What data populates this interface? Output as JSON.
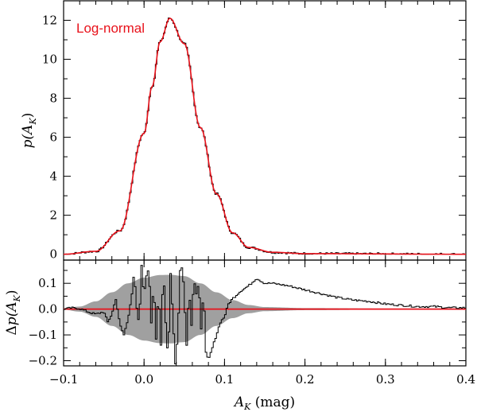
{
  "chart_data": [
    {
      "type": "histogram",
      "panel": "top",
      "ylabel": "p(A_K)",
      "ylabel_parts": {
        "main": "p(A",
        "sub": "K",
        "close": ")"
      },
      "xlim": [
        -0.1,
        0.4
      ],
      "ylim": [
        -0.3,
        13
      ],
      "yticks": [
        0,
        2,
        4,
        6,
        8,
        10,
        12
      ],
      "ytick_labels": [
        "0",
        "2",
        "4",
        "6",
        "8",
        "10",
        "12"
      ],
      "legend": {
        "label": "Log-normal",
        "color": "#e8121b",
        "location": "top-left"
      },
      "model": {
        "name": "Log-normal",
        "color": "#e8121b",
        "peak_x": 0.032,
        "peak_y": 12.1,
        "left_anchor_points": [
          [
            -0.1,
            0.0
          ],
          [
            -0.06,
            0.15
          ],
          [
            -0.03,
            1.2
          ],
          [
            0.0,
            6.2
          ],
          [
            0.01,
            8.6
          ],
          [
            0.02,
            10.9
          ],
          [
            0.032,
            12.1
          ]
        ],
        "right_anchor_points": [
          [
            0.032,
            12.1
          ],
          [
            0.05,
            10.8
          ],
          [
            0.07,
            6.5
          ],
          [
            0.09,
            3.1
          ],
          [
            0.11,
            1.1
          ],
          [
            0.13,
            0.35
          ],
          [
            0.16,
            0.1
          ],
          [
            0.2,
            0.03
          ],
          [
            0.4,
            0.0
          ]
        ]
      },
      "histogram": {
        "color": "#000000",
        "bin_width": 0.002,
        "x_start": -0.1,
        "x_end": 0.4
      }
    },
    {
      "type": "residual",
      "panel": "bottom",
      "xlabel": "A_K (mag)",
      "xlabel_parts": {
        "main": "A",
        "sub": "K",
        "unit": " (mag)"
      },
      "ylabel": "Δp(A_K)",
      "ylabel_parts": {
        "delta": "Δ",
        "main": "p(A",
        "sub": "K",
        "close": ")"
      },
      "xlim": [
        -0.1,
        0.4
      ],
      "ylim": [
        -0.22,
        0.19
      ],
      "xticks": [
        -0.1,
        0.0,
        0.1,
        0.2,
        0.3,
        0.4
      ],
      "xtick_labels": [
        "−0.1",
        "0.0",
        "0.1",
        "0.2",
        "0.3",
        "0.4"
      ],
      "yticks": [
        -0.2,
        -0.1,
        0.0,
        0.1
      ],
      "ytick_labels": [
        "−0.2",
        "−0.1",
        "0.0",
        "0.1"
      ],
      "zero_line_color": "#e8121b",
      "uncertainty_band": {
        "color": "#a0a0a0",
        "half_width_points": [
          [
            -0.1,
            0.002
          ],
          [
            -0.08,
            0.01
          ],
          [
            -0.06,
            0.03
          ],
          [
            -0.04,
            0.065
          ],
          [
            -0.02,
            0.1
          ],
          [
            0.0,
            0.122
          ],
          [
            0.02,
            0.132
          ],
          [
            0.032,
            0.133
          ],
          [
            0.05,
            0.128
          ],
          [
            0.07,
            0.1
          ],
          [
            0.09,
            0.065
          ],
          [
            0.11,
            0.035
          ],
          [
            0.13,
            0.016
          ],
          [
            0.15,
            0.008
          ],
          [
            0.2,
            0.004
          ],
          [
            0.3,
            0.002
          ],
          [
            0.4,
            0.001
          ]
        ]
      },
      "residual_anchor_points": [
        [
          -0.1,
          0.0
        ],
        [
          -0.09,
          0.005
        ],
        [
          -0.08,
          0.002
        ],
        [
          -0.07,
          -0.01
        ],
        [
          -0.06,
          -0.02
        ],
        [
          -0.05,
          -0.01
        ],
        [
          -0.045,
          -0.05
        ],
        [
          -0.04,
          -0.02
        ],
        [
          -0.035,
          0.04
        ],
        [
          -0.03,
          -0.06
        ],
        [
          -0.025,
          -0.1
        ],
        [
          -0.02,
          -0.04
        ],
        [
          -0.015,
          0.06
        ],
        [
          -0.012,
          0.15
        ],
        [
          -0.01,
          0.02
        ],
        [
          -0.006,
          -0.06
        ],
        [
          -0.003,
          0.17
        ],
        [
          0.0,
          0.05
        ],
        [
          0.003,
          0.13
        ],
        [
          0.006,
          0.16
        ],
        [
          0.009,
          -0.05
        ],
        [
          0.012,
          0.1
        ],
        [
          0.015,
          -0.12
        ],
        [
          0.018,
          0.07
        ],
        [
          0.021,
          -0.14
        ],
        [
          0.024,
          0.16
        ],
        [
          0.027,
          -0.05
        ],
        [
          0.03,
          -0.2
        ],
        [
          0.033,
          0.14
        ],
        [
          0.036,
          -0.04
        ],
        [
          0.039,
          -0.21
        ],
        [
          0.042,
          -0.1
        ],
        [
          0.045,
          0.15
        ],
        [
          0.048,
          0.17
        ],
        [
          0.05,
          0.05
        ],
        [
          0.053,
          -0.14
        ],
        [
          0.056,
          0.08
        ],
        [
          0.059,
          -0.06
        ],
        [
          0.062,
          0.12
        ],
        [
          0.065,
          0.06
        ],
        [
          0.068,
          0.1
        ],
        [
          0.071,
          -0.08
        ],
        [
          0.074,
          0.08
        ],
        [
          0.077,
          -0.17
        ],
        [
          0.08,
          -0.2
        ],
        [
          0.085,
          -0.15
        ],
        [
          0.09,
          -0.1
        ],
        [
          0.095,
          -0.05
        ],
        [
          0.1,
          -0.03
        ],
        [
          0.105,
          0.02
        ],
        [
          0.11,
          0.04
        ],
        [
          0.12,
          0.07
        ],
        [
          0.13,
          0.09
        ],
        [
          0.14,
          0.12
        ],
        [
          0.15,
          0.1
        ],
        [
          0.16,
          0.1
        ],
        [
          0.18,
          0.09
        ],
        [
          0.2,
          0.075
        ],
        [
          0.22,
          0.06
        ],
        [
          0.24,
          0.045
        ],
        [
          0.26,
          0.035
        ],
        [
          0.28,
          0.03
        ],
        [
          0.3,
          0.02
        ],
        [
          0.32,
          0.015
        ],
        [
          0.34,
          0.01
        ],
        [
          0.36,
          0.01
        ],
        [
          0.38,
          0.005
        ],
        [
          0.4,
          0.005
        ]
      ]
    }
  ]
}
